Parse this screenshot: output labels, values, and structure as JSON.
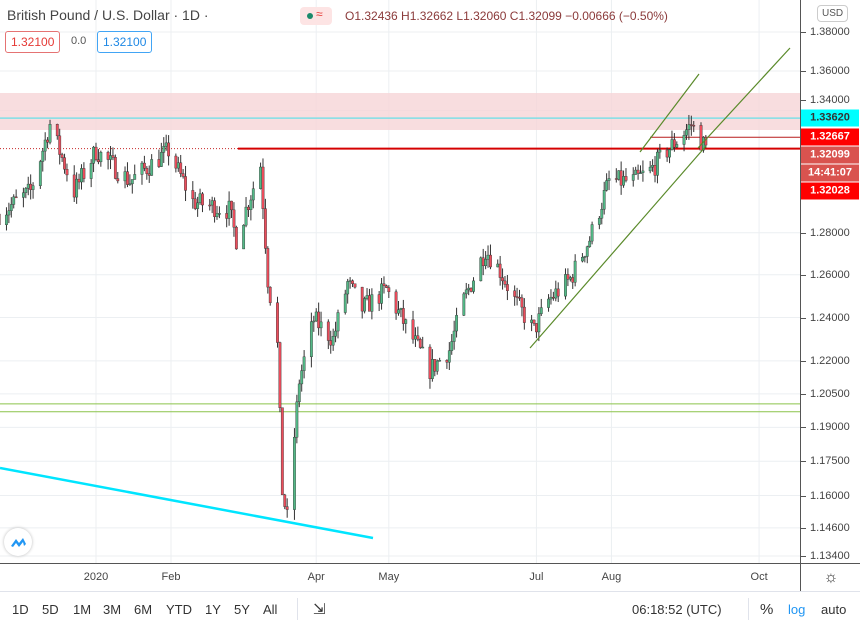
{
  "header": {
    "symbol_title": "British Pound / U.S. Dollar · 1D ·",
    "status_icon": "market-status-dot",
    "ohlc": "O1.32436 H1.32662 L1.32060 C1.32099 −0.00666 (−0.50%)",
    "sell_price": "1.32100",
    "spread": "0.0",
    "buy_price": "1.32100",
    "currency": "USD"
  },
  "colors": {
    "up": "#53b987",
    "down": "#eb4d5c",
    "resistance_band": "#f6d5d7",
    "cyan_line": "#00e5ff",
    "red_line": "#d50000",
    "channel": "#5a8a2a"
  },
  "price_labels": [
    {
      "text": "1.33620",
      "bg": "#00ffff",
      "fg": "#333333"
    },
    {
      "text": "1.32667",
      "bg": "#ff0000",
      "fg": "#ffffff"
    },
    {
      "text": "1.32099",
      "bg": "#d9534f",
      "fg": "#ffffff"
    },
    {
      "text": "14:41:07",
      "bg": "#d9534f",
      "fg": "#ffffff"
    },
    {
      "text": "1.32028",
      "bg": "#ff0000",
      "fg": "#ffffff"
    }
  ],
  "chart_data": {
    "type": "candlestick",
    "title": "British Pound / U.S. Dollar · 1D",
    "y_scale": "log",
    "ylim": [
      1.134,
      1.38
    ],
    "y_ticks": [
      "1.38000",
      "1.36000",
      "1.34000",
      "1.28000",
      "1.26000",
      "1.24000",
      "1.22000",
      "1.20500",
      "1.19000",
      "1.17500",
      "1.16000",
      "1.14600",
      "1.13400"
    ],
    "x_ticks": [
      "2020",
      "Feb",
      "Apr",
      "May",
      "Jul",
      "Aug",
      "Oct"
    ],
    "grid": true,
    "approx_closes": [
      [
        "2019-11-22",
        1.289
      ],
      [
        "2019-12-05",
        1.3
      ],
      [
        "2019-12-13",
        1.333
      ],
      [
        "2019-12-23",
        1.3
      ],
      [
        "2020-01-01",
        1.32
      ],
      [
        "2020-01-15",
        1.305
      ],
      [
        "2020-01-31",
        1.32
      ],
      [
        "2020-02-10",
        1.295
      ],
      [
        "2020-02-25",
        1.291
      ],
      [
        "2020-02-28",
        1.277
      ],
      [
        "2020-03-09",
        1.313
      ],
      [
        "2020-03-12",
        1.258
      ],
      [
        "2020-03-16",
        1.227
      ],
      [
        "2020-03-18",
        1.162
      ],
      [
        "2020-03-20",
        1.15
      ],
      [
        "2020-03-25",
        1.211
      ],
      [
        "2020-03-31",
        1.239
      ],
      [
        "2020-04-08",
        1.23
      ],
      [
        "2020-04-14",
        1.256
      ],
      [
        "2020-04-20",
        1.244
      ],
      [
        "2020-04-30",
        1.253
      ],
      [
        "2020-05-08",
        1.236
      ],
      [
        "2020-05-18",
        1.216
      ],
      [
        "2020-05-26",
        1.225
      ],
      [
        "2020-06-01",
        1.248
      ],
      [
        "2020-06-10",
        1.272
      ],
      [
        "2020-06-16",
        1.262
      ],
      [
        "2020-06-22",
        1.248
      ],
      [
        "2020-06-30",
        1.234
      ],
      [
        "2020-07-06",
        1.248
      ],
      [
        "2020-07-15",
        1.258
      ],
      [
        "2020-07-23",
        1.277
      ],
      [
        "2020-07-31",
        1.305
      ],
      [
        "2020-08-10",
        1.305
      ],
      [
        "2020-08-17",
        1.31
      ],
      [
        "2020-08-24",
        1.32
      ],
      [
        "2020-08-28",
        1.325
      ],
      [
        "2020-09-03",
        1.333
      ],
      [
        "2020-09-09",
        1.321
      ]
    ],
    "levels": {
      "cyan": 1.3362,
      "resistance": 1.32667,
      "support": 1.32099,
      "low_zone": [
        1.197,
        1.2005
      ]
    }
  },
  "time_axis": [
    "2020",
    "Feb",
    "Apr",
    "May",
    "Jul",
    "Aug",
    "Oct"
  ],
  "bottom": {
    "ranges": [
      "1D",
      "5D",
      "1M",
      "3M",
      "6M",
      "YTD",
      "1Y",
      "5Y",
      "All"
    ],
    "clock": "06:18:52 (UTC)",
    "percent": "%",
    "log": "log",
    "auto": "auto"
  }
}
